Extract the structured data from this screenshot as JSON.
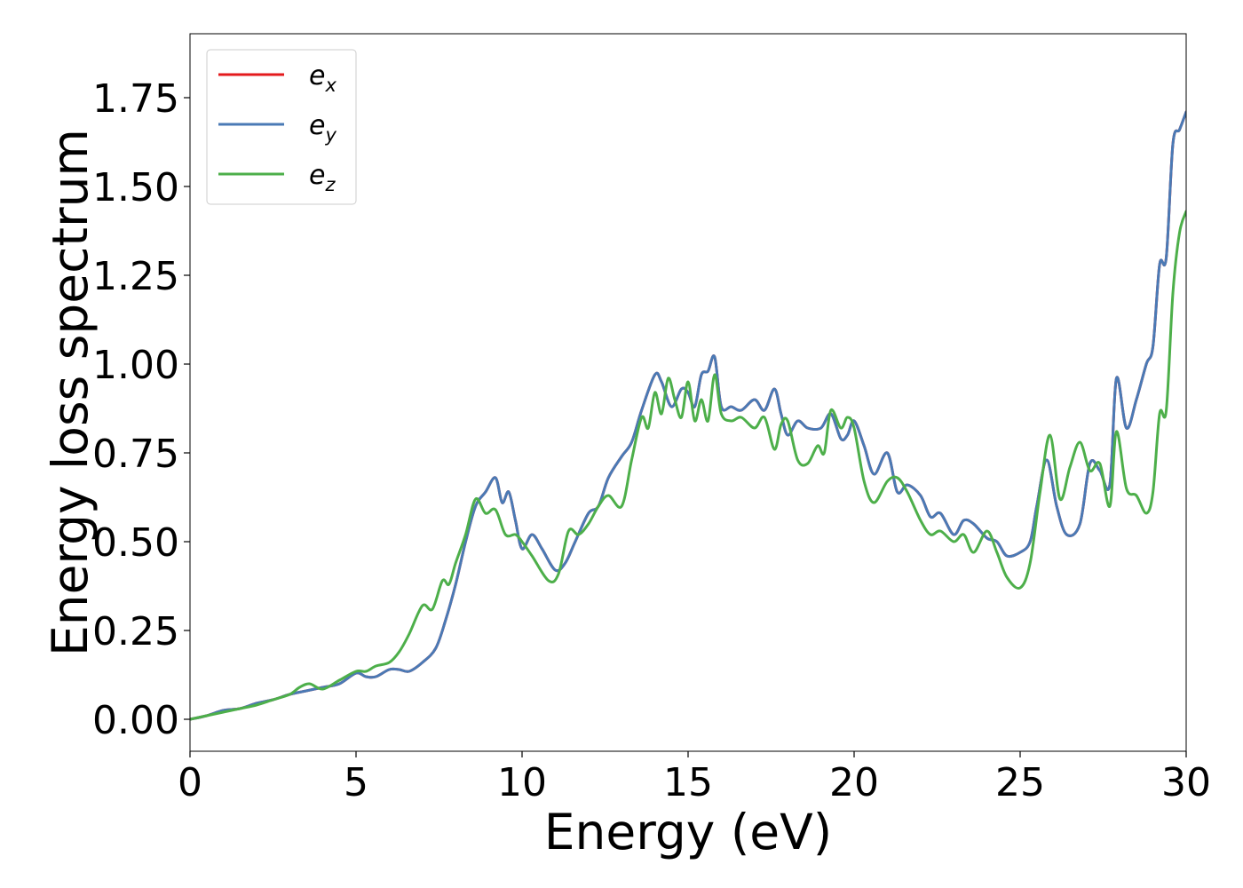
{
  "chart_data": {
    "type": "line",
    "xlabel": "Energy (eV)",
    "ylabel": "Energy loss spectrum",
    "xlim": [
      0,
      30
    ],
    "ylim": [
      -0.09,
      1.93
    ],
    "xticks": [
      0,
      5,
      10,
      15,
      20,
      25,
      30
    ],
    "xtick_labels": [
      "0",
      "5",
      "10",
      "15",
      "20",
      "25",
      "30"
    ],
    "yticks": [
      0.0,
      0.25,
      0.5,
      0.75,
      1.0,
      1.25,
      1.5,
      1.75
    ],
    "ytick_labels": [
      "0.00",
      "0.25",
      "0.50",
      "0.75",
      "1.00",
      "1.25",
      "1.50",
      "1.75"
    ],
    "grid": false,
    "legend_position": "top-left",
    "series": [
      {
        "name": "e_x",
        "label_main": "e",
        "label_sub": "x",
        "color": "#e41a1c",
        "x": [
          0,
          0.5,
          1,
          1.5,
          2,
          2.5,
          3,
          3.5,
          4,
          4.5,
          5,
          5.3,
          5.6,
          6,
          6.3,
          6.6,
          7,
          7.4,
          7.7,
          8,
          8.3,
          8.6,
          8.9,
          9.2,
          9.4,
          9.6,
          9.8,
          10,
          10.3,
          10.6,
          11,
          11.3,
          11.6,
          12,
          12.3,
          12.6,
          13,
          13.3,
          13.6,
          14,
          14.2,
          14.5,
          14.8,
          15,
          15.2,
          15.4,
          15.6,
          15.8,
          16,
          16.3,
          16.6,
          17,
          17.3,
          17.6,
          17.8,
          18,
          18.3,
          18.6,
          19,
          19.3,
          19.6,
          19.8,
          20,
          20.3,
          20.6,
          21,
          21.3,
          21.6,
          22,
          22.3,
          22.6,
          23,
          23.3,
          23.6,
          24,
          24.3,
          24.6,
          25,
          25.3,
          25.5,
          25.8,
          26.1,
          26.4,
          26.8,
          27.1,
          27.4,
          27.7,
          27.9,
          28.2,
          28.5,
          28.8,
          29,
          29.2,
          29.4,
          29.6,
          29.8,
          30
        ],
        "y": [
          0.0,
          0.01,
          0.025,
          0.03,
          0.045,
          0.055,
          0.07,
          0.08,
          0.09,
          0.1,
          0.13,
          0.12,
          0.12,
          0.14,
          0.14,
          0.135,
          0.16,
          0.2,
          0.28,
          0.38,
          0.5,
          0.6,
          0.64,
          0.68,
          0.61,
          0.64,
          0.56,
          0.48,
          0.52,
          0.48,
          0.42,
          0.44,
          0.5,
          0.58,
          0.6,
          0.68,
          0.74,
          0.78,
          0.87,
          0.97,
          0.95,
          0.88,
          0.93,
          0.92,
          0.88,
          0.97,
          0.98,
          1.02,
          0.88,
          0.88,
          0.87,
          0.9,
          0.87,
          0.93,
          0.86,
          0.8,
          0.84,
          0.82,
          0.82,
          0.86,
          0.79,
          0.8,
          0.84,
          0.77,
          0.69,
          0.75,
          0.64,
          0.66,
          0.63,
          0.57,
          0.58,
          0.52,
          0.56,
          0.55,
          0.51,
          0.5,
          0.46,
          0.47,
          0.5,
          0.6,
          0.73,
          0.6,
          0.52,
          0.55,
          0.72,
          0.7,
          0.66,
          0.96,
          0.82,
          0.9,
          1.0,
          1.05,
          1.28,
          1.3,
          1.62,
          1.66,
          1.71
        ]
      },
      {
        "name": "e_y",
        "label_main": "e",
        "label_sub": "y",
        "color": "#4a7ab5",
        "x": [
          0,
          0.5,
          1,
          1.5,
          2,
          2.5,
          3,
          3.5,
          4,
          4.5,
          5,
          5.3,
          5.6,
          6,
          6.3,
          6.6,
          7,
          7.4,
          7.7,
          8,
          8.3,
          8.6,
          8.9,
          9.2,
          9.4,
          9.6,
          9.8,
          10,
          10.3,
          10.6,
          11,
          11.3,
          11.6,
          12,
          12.3,
          12.6,
          13,
          13.3,
          13.6,
          14,
          14.2,
          14.5,
          14.8,
          15,
          15.2,
          15.4,
          15.6,
          15.8,
          16,
          16.3,
          16.6,
          17,
          17.3,
          17.6,
          17.8,
          18,
          18.3,
          18.6,
          19,
          19.3,
          19.6,
          19.8,
          20,
          20.3,
          20.6,
          21,
          21.3,
          21.6,
          22,
          22.3,
          22.6,
          23,
          23.3,
          23.6,
          24,
          24.3,
          24.6,
          25,
          25.3,
          25.5,
          25.8,
          26.1,
          26.4,
          26.8,
          27.1,
          27.4,
          27.7,
          27.9,
          28.2,
          28.5,
          28.8,
          29,
          29.2,
          29.4,
          29.6,
          29.8,
          30
        ],
        "y": [
          0.0,
          0.01,
          0.025,
          0.03,
          0.045,
          0.055,
          0.07,
          0.08,
          0.09,
          0.1,
          0.13,
          0.12,
          0.12,
          0.14,
          0.14,
          0.135,
          0.16,
          0.2,
          0.28,
          0.38,
          0.5,
          0.6,
          0.64,
          0.68,
          0.61,
          0.64,
          0.56,
          0.48,
          0.52,
          0.48,
          0.42,
          0.44,
          0.5,
          0.58,
          0.6,
          0.68,
          0.74,
          0.78,
          0.87,
          0.97,
          0.95,
          0.88,
          0.93,
          0.92,
          0.88,
          0.97,
          0.98,
          1.02,
          0.88,
          0.88,
          0.87,
          0.9,
          0.87,
          0.93,
          0.86,
          0.8,
          0.84,
          0.82,
          0.82,
          0.86,
          0.79,
          0.8,
          0.84,
          0.77,
          0.69,
          0.75,
          0.64,
          0.66,
          0.63,
          0.57,
          0.58,
          0.52,
          0.56,
          0.55,
          0.51,
          0.5,
          0.46,
          0.47,
          0.5,
          0.6,
          0.73,
          0.6,
          0.52,
          0.55,
          0.72,
          0.7,
          0.66,
          0.96,
          0.82,
          0.9,
          1.0,
          1.05,
          1.28,
          1.3,
          1.62,
          1.66,
          1.71
        ]
      },
      {
        "name": "e_z",
        "label_main": "e",
        "label_sub": "z",
        "color": "#4daf4a",
        "x": [
          0,
          0.5,
          1,
          1.5,
          2,
          2.5,
          3,
          3.3,
          3.6,
          4,
          4.5,
          5,
          5.3,
          5.6,
          6,
          6.3,
          6.6,
          7,
          7.3,
          7.6,
          7.8,
          8,
          8.3,
          8.6,
          8.9,
          9.2,
          9.5,
          9.8,
          10,
          10.3,
          10.8,
          11.1,
          11.4,
          11.7,
          12,
          12.3,
          12.6,
          13,
          13.3,
          13.6,
          13.8,
          14,
          14.2,
          14.4,
          14.6,
          14.8,
          15,
          15.2,
          15.4,
          15.6,
          15.8,
          16,
          16.3,
          16.6,
          17,
          17.3,
          17.6,
          17.8,
          18,
          18.3,
          18.6,
          18.9,
          19.1,
          19.3,
          19.6,
          19.8,
          20,
          20.3,
          20.6,
          21,
          21.3,
          21.6,
          22,
          22.3,
          22.6,
          23,
          23.3,
          23.6,
          24,
          24.3,
          24.6,
          25,
          25.3,
          25.6,
          25.9,
          26.2,
          26.5,
          26.8,
          27.1,
          27.4,
          27.7,
          27.9,
          28.2,
          28.5,
          28.8,
          29,
          29.2,
          29.4,
          29.6,
          29.8,
          30
        ],
        "y": [
          0.0,
          0.01,
          0.02,
          0.03,
          0.04,
          0.055,
          0.07,
          0.09,
          0.1,
          0.085,
          0.11,
          0.135,
          0.135,
          0.15,
          0.16,
          0.19,
          0.24,
          0.32,
          0.31,
          0.39,
          0.38,
          0.44,
          0.52,
          0.62,
          0.58,
          0.59,
          0.52,
          0.52,
          0.5,
          0.46,
          0.39,
          0.41,
          0.53,
          0.52,
          0.55,
          0.6,
          0.63,
          0.6,
          0.73,
          0.85,
          0.82,
          0.92,
          0.86,
          0.96,
          0.9,
          0.85,
          0.95,
          0.84,
          0.9,
          0.84,
          0.97,
          0.86,
          0.84,
          0.85,
          0.82,
          0.85,
          0.76,
          0.83,
          0.84,
          0.73,
          0.72,
          0.77,
          0.75,
          0.87,
          0.82,
          0.85,
          0.82,
          0.67,
          0.61,
          0.67,
          0.68,
          0.64,
          0.56,
          0.52,
          0.53,
          0.5,
          0.52,
          0.47,
          0.53,
          0.47,
          0.4,
          0.37,
          0.44,
          0.64,
          0.8,
          0.62,
          0.71,
          0.78,
          0.7,
          0.72,
          0.6,
          0.81,
          0.65,
          0.63,
          0.58,
          0.64,
          0.86,
          0.87,
          1.2,
          1.37,
          1.43
        ]
      }
    ]
  }
}
